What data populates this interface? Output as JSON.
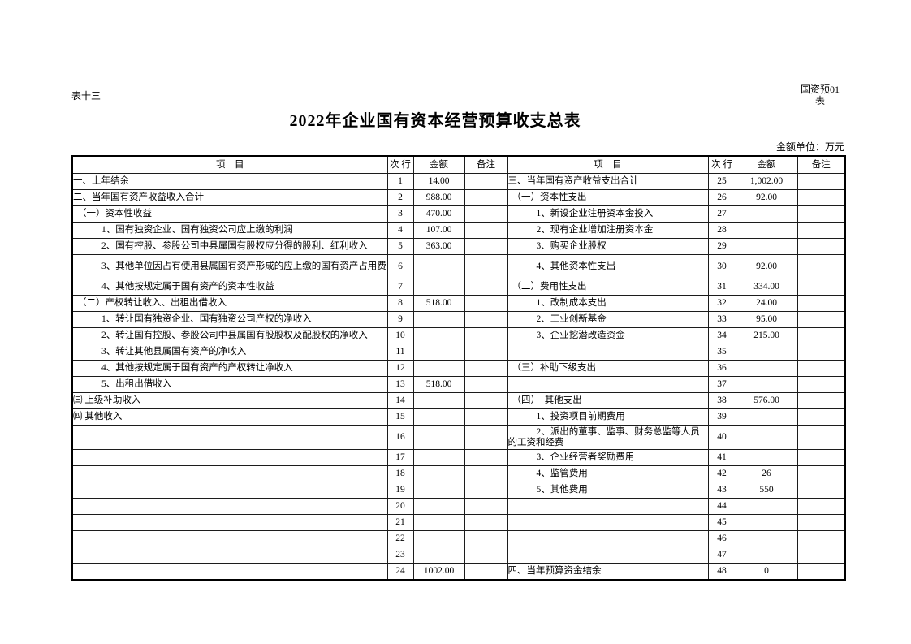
{
  "page": {
    "sheet_label": "表十三",
    "form_code": [
      "国资预01",
      "表"
    ],
    "title": "2022年企业国有资本经营预算收支总表",
    "unit_note": "金额单位：万元"
  },
  "table": {
    "headers": {
      "item": "项　目",
      "row_no": "次 行",
      "amount": "金额",
      "remark": "备注"
    },
    "rows": [
      {
        "tall": false,
        "left": {
          "item": "一、上年结余",
          "level": 0,
          "row_no": "1",
          "amount": "14.00",
          "remark": ""
        },
        "right": {
          "item": "三、当年国有资产收益支出合计",
          "level": 0,
          "row_no": "25",
          "amount": "1,002.00",
          "remark": ""
        }
      },
      {
        "tall": false,
        "left": {
          "item": "二、当年国有资产收益收入合计",
          "level": 0,
          "row_no": "2",
          "amount": "988.00",
          "remark": ""
        },
        "right": {
          "item": "（一）资本性支出",
          "level": 1,
          "row_no": "26",
          "amount": "92.00",
          "remark": ""
        }
      },
      {
        "tall": false,
        "left": {
          "item": "（一）资本性收益",
          "level": 1,
          "row_no": "3",
          "amount": "470.00",
          "remark": ""
        },
        "right": {
          "item": "1、新设企业注册资本金投入",
          "level": 2,
          "row_no": "27",
          "amount": "",
          "remark": ""
        }
      },
      {
        "tall": false,
        "left": {
          "item": "1、国有独资企业、国有独资公司应上缴的利润",
          "level": 2,
          "row_no": "4",
          "amount": "107.00",
          "remark": ""
        },
        "right": {
          "item": "2、现有企业增加注册资本金",
          "level": 2,
          "row_no": "28",
          "amount": "",
          "remark": ""
        }
      },
      {
        "tall": false,
        "left": {
          "item": "2、国有控股、参股公司中县属国有股权应分得的股利、红利收入",
          "level": 2,
          "row_no": "5",
          "amount": "363.00",
          "remark": ""
        },
        "right": {
          "item": "3、购买企业股权",
          "level": 2,
          "row_no": "29",
          "amount": "",
          "remark": ""
        }
      },
      {
        "tall": true,
        "left": {
          "item": "3、其他单位因占有使用县属国有资产形成的应上缴的国有资产占用费",
          "level": 2,
          "row_no": "6",
          "amount": "",
          "remark": ""
        },
        "right": {
          "item": "4、其他资本性支出",
          "level": 2,
          "row_no": "30",
          "amount": "92.00",
          "remark": ""
        }
      },
      {
        "tall": false,
        "left": {
          "item": "4、其他按规定属于国有资产的资本性收益",
          "level": 2,
          "row_no": "7",
          "amount": "",
          "remark": ""
        },
        "right": {
          "item": "（二）费用性支出",
          "level": 1,
          "row_no": "31",
          "amount": "334.00",
          "remark": ""
        }
      },
      {
        "tall": false,
        "left": {
          "item": "（二）产权转让收入、出租出借收入",
          "level": 1,
          "row_no": "8",
          "amount": "518.00",
          "remark": ""
        },
        "right": {
          "item": "1、改制成本支出",
          "level": 2,
          "row_no": "32",
          "amount": "24.00",
          "remark": ""
        }
      },
      {
        "tall": false,
        "left": {
          "item": "1、转让国有独资企业、国有独资公司产权的净收入",
          "level": 2,
          "row_no": "9",
          "amount": "",
          "remark": ""
        },
        "right": {
          "item": "2、工业创新基金",
          "level": 2,
          "row_no": "33",
          "amount": "95.00",
          "remark": ""
        }
      },
      {
        "tall": false,
        "left": {
          "item": "2、转让国有控股、参股公司中县属国有股股权及配股权的净收入",
          "level": 2,
          "row_no": "10",
          "amount": "",
          "remark": ""
        },
        "right": {
          "item": "3、企业挖潜改造资金",
          "level": 2,
          "row_no": "34",
          "amount": "215.00",
          "remark": ""
        }
      },
      {
        "tall": false,
        "left": {
          "item": "3、转让其他县属国有资产的净收入",
          "level": 2,
          "row_no": "11",
          "amount": "",
          "remark": ""
        },
        "right": {
          "item": "",
          "level": 0,
          "row_no": "35",
          "amount": "",
          "remark": ""
        }
      },
      {
        "tall": false,
        "left": {
          "item": "4、其他按规定属于国有资产的产权转让净收入",
          "level": 2,
          "row_no": "12",
          "amount": "",
          "remark": ""
        },
        "right": {
          "item": "（三）补助下级支出",
          "level": 1,
          "row_no": "36",
          "amount": "",
          "remark": ""
        }
      },
      {
        "tall": false,
        "left": {
          "item": "5、出租出借收入",
          "level": 2,
          "row_no": "13",
          "amount": "518.00",
          "remark": ""
        },
        "right": {
          "item": "",
          "level": 0,
          "row_no": "37",
          "amount": "",
          "remark": ""
        }
      },
      {
        "tall": false,
        "left": {
          "item": "㈢ 上级补助收入",
          "level": 0,
          "row_no": "14",
          "amount": "",
          "remark": ""
        },
        "right": {
          "item": "（四）　其他支出",
          "level": 1,
          "row_no": "38",
          "amount": "576.00",
          "remark": ""
        }
      },
      {
        "tall": false,
        "left": {
          "item": "㈣ 其他收入",
          "level": 0,
          "row_no": "15",
          "amount": "",
          "remark": ""
        },
        "right": {
          "item": "1、投资项目前期费用",
          "level": 2,
          "row_no": "39",
          "amount": "",
          "remark": ""
        }
      },
      {
        "tall": true,
        "left": {
          "item": "",
          "level": 0,
          "row_no": "16",
          "amount": "",
          "remark": ""
        },
        "right": {
          "item": "2、派出的董事、监事、财务总监等人员的工资和经费",
          "level": 2,
          "row_no": "40",
          "amount": "",
          "remark": ""
        }
      },
      {
        "tall": false,
        "left": {
          "item": "",
          "level": 0,
          "row_no": "17",
          "amount": "",
          "remark": ""
        },
        "right": {
          "item": "3、企业经营者奖励费用",
          "level": 2,
          "row_no": "41",
          "amount": "",
          "remark": ""
        }
      },
      {
        "tall": false,
        "left": {
          "item": "",
          "level": 0,
          "row_no": "18",
          "amount": "",
          "remark": ""
        },
        "right": {
          "item": "4、监管费用",
          "level": 2,
          "row_no": "42",
          "amount": "26",
          "remark": ""
        }
      },
      {
        "tall": false,
        "left": {
          "item": "",
          "level": 0,
          "row_no": "19",
          "amount": "",
          "remark": ""
        },
        "right": {
          "item": "5、其他费用",
          "level": 2,
          "row_no": "43",
          "amount": "550",
          "remark": ""
        }
      },
      {
        "tall": false,
        "left": {
          "item": "",
          "level": 0,
          "row_no": "20",
          "amount": "",
          "remark": ""
        },
        "right": {
          "item": "",
          "level": 0,
          "row_no": "44",
          "amount": "",
          "remark": ""
        }
      },
      {
        "tall": false,
        "left": {
          "item": "",
          "level": 0,
          "row_no": "21",
          "amount": "",
          "remark": ""
        },
        "right": {
          "item": "",
          "level": 0,
          "row_no": "45",
          "amount": "",
          "remark": ""
        }
      },
      {
        "tall": false,
        "left": {
          "item": "",
          "level": 0,
          "row_no": "22",
          "amount": "",
          "remark": ""
        },
        "right": {
          "item": "",
          "level": 0,
          "row_no": "46",
          "amount": "",
          "remark": ""
        }
      },
      {
        "tall": false,
        "left": {
          "item": "",
          "level": 0,
          "row_no": "23",
          "amount": "",
          "remark": ""
        },
        "right": {
          "item": "",
          "level": 0,
          "row_no": "47",
          "amount": "",
          "remark": ""
        }
      },
      {
        "tall": false,
        "left": {
          "item": "",
          "level": 0,
          "row_no": "24",
          "amount": "1002.00",
          "remark": ""
        },
        "right": {
          "item": "四、当年预算资金结余",
          "level": 0,
          "row_no": "48",
          "amount": "0",
          "remark": ""
        }
      }
    ]
  }
}
